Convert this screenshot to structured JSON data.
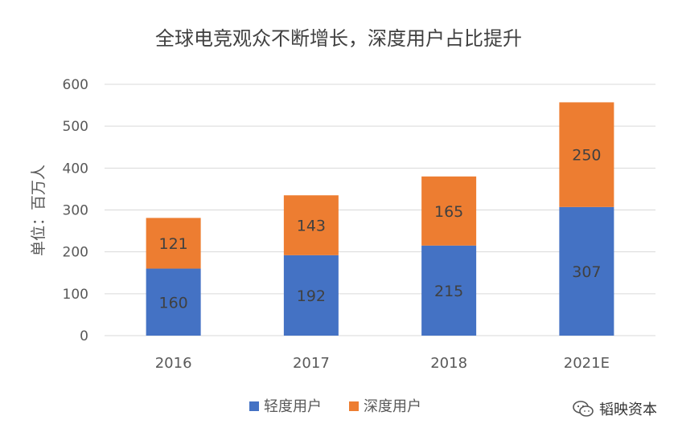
{
  "chart_data": {
    "type": "bar",
    "stacked": true,
    "title": "全球电竞观众不断增长，深度用户占比提升",
    "xlabel": "",
    "ylabel": "单位：百万人",
    "categories": [
      "2016",
      "2017",
      "2018",
      "2021E"
    ],
    "ylim": [
      0,
      600
    ],
    "yticks": [
      "0",
      "100",
      "200",
      "300",
      "400",
      "500",
      "600"
    ],
    "grid": true,
    "legend_position": "bottom",
    "series": [
      {
        "name": "轻度用户",
        "values": [
          160,
          192,
          215,
          307
        ],
        "color": "#4472C4"
      },
      {
        "name": "深度用户",
        "values": [
          121,
          143,
          165,
          250
        ],
        "color": "#ED7D31"
      }
    ]
  },
  "watermark": {
    "text": "韬映资本",
    "icon": "wechat-icon"
  }
}
